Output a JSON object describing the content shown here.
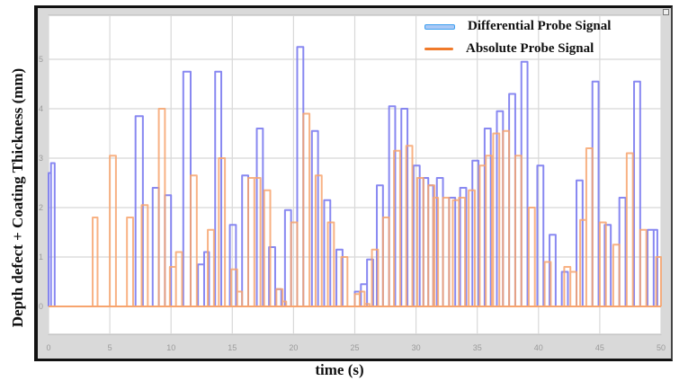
{
  "chart_data": {
    "type": "line",
    "subtype": "step",
    "title": "",
    "xlabel": "time (s)",
    "ylabel": "Depth defect + Coating Thickness (mm)",
    "xlim": [
      0,
      50
    ],
    "ylim": [
      -0.6,
      5.6
    ],
    "xticks": [
      0,
      5,
      10,
      15,
      20,
      25,
      30,
      35,
      40,
      45,
      50
    ],
    "yticks": [
      0,
      1,
      2,
      3,
      4,
      5
    ],
    "grid": true,
    "legend_position": "upper right",
    "series": [
      {
        "name": "Differential Probe Signal",
        "color": "#7b7bf0",
        "pulses": [
          [
            0.0,
            0.2,
            2.7
          ],
          [
            0.2,
            0.5,
            2.9
          ],
          [
            7.1,
            7.7,
            3.85
          ],
          [
            8.5,
            9.0,
            2.4
          ],
          [
            9.5,
            10.0,
            2.25
          ],
          [
            11.0,
            11.6,
            4.75
          ],
          [
            12.2,
            12.7,
            0.85
          ],
          [
            12.7,
            13.1,
            1.1
          ],
          [
            13.6,
            14.1,
            4.75
          ],
          [
            14.8,
            15.3,
            1.65
          ],
          [
            15.8,
            16.3,
            2.65
          ],
          [
            17.0,
            17.5,
            3.6
          ],
          [
            18.0,
            18.5,
            1.2
          ],
          [
            18.5,
            19.0,
            0.35
          ],
          [
            19.3,
            19.8,
            1.95
          ],
          [
            20.3,
            20.8,
            5.25
          ],
          [
            21.5,
            22.0,
            3.55
          ],
          [
            22.5,
            23.0,
            2.15
          ],
          [
            23.5,
            24.0,
            1.15
          ],
          [
            25.0,
            25.5,
            0.3
          ],
          [
            25.5,
            26.0,
            0.45
          ],
          [
            26.0,
            26.5,
            0.95
          ],
          [
            26.8,
            27.3,
            2.45
          ],
          [
            27.8,
            28.3,
            4.05
          ],
          [
            28.8,
            29.3,
            4.0
          ],
          [
            29.8,
            30.3,
            2.85
          ],
          [
            30.6,
            31.0,
            2.6
          ],
          [
            31.0,
            31.4,
            2.45
          ],
          [
            31.7,
            32.2,
            2.6
          ],
          [
            32.7,
            33.2,
            2.2
          ],
          [
            33.6,
            34.1,
            2.4
          ],
          [
            34.6,
            35.1,
            2.95
          ],
          [
            35.6,
            36.1,
            3.6
          ],
          [
            36.6,
            37.1,
            3.95
          ],
          [
            37.6,
            38.1,
            4.3
          ],
          [
            38.6,
            39.1,
            4.95
          ],
          [
            39.9,
            40.4,
            2.85
          ],
          [
            40.9,
            41.4,
            1.45
          ],
          [
            41.9,
            42.4,
            0.7
          ],
          [
            43.1,
            43.6,
            2.55
          ],
          [
            44.4,
            44.9,
            4.55
          ],
          [
            45.4,
            45.9,
            1.65
          ],
          [
            46.6,
            47.1,
            2.2
          ],
          [
            47.8,
            48.3,
            4.55
          ],
          [
            48.9,
            49.4,
            1.55
          ],
          [
            49.4,
            49.7,
            1.55
          ]
        ]
      },
      {
        "name": "Absolute Probe Signal",
        "color": "#f7a46e",
        "pulses": [
          [
            3.6,
            4.0,
            1.8
          ],
          [
            5.0,
            5.5,
            3.05
          ],
          [
            6.4,
            6.9,
            1.8
          ],
          [
            7.6,
            8.1,
            2.05
          ],
          [
            9.0,
            9.5,
            4.0
          ],
          [
            9.9,
            10.4,
            0.8
          ],
          [
            10.4,
            10.9,
            1.1
          ],
          [
            11.6,
            12.1,
            2.65
          ],
          [
            13.0,
            13.5,
            1.55
          ],
          [
            13.9,
            14.4,
            3.0
          ],
          [
            14.9,
            15.4,
            0.75
          ],
          [
            15.4,
            15.8,
            0.3
          ],
          [
            16.3,
            16.8,
            2.6
          ],
          [
            16.8,
            17.3,
            2.6
          ],
          [
            17.6,
            18.1,
            2.35
          ],
          [
            18.6,
            19.1,
            0.35
          ],
          [
            19.1,
            19.4,
            0.1
          ],
          [
            19.8,
            20.3,
            1.7
          ],
          [
            20.8,
            21.3,
            3.9
          ],
          [
            21.8,
            22.3,
            2.65
          ],
          [
            22.8,
            23.3,
            1.7
          ],
          [
            23.9,
            24.4,
            1.0
          ],
          [
            25.0,
            25.4,
            0.25
          ],
          [
            25.4,
            25.8,
            0.3
          ],
          [
            25.8,
            26.2,
            0.05
          ],
          [
            26.4,
            26.9,
            1.15
          ],
          [
            27.3,
            27.8,
            1.8
          ],
          [
            28.2,
            28.7,
            3.15
          ],
          [
            29.2,
            29.7,
            3.25
          ],
          [
            30.1,
            30.6,
            2.6
          ],
          [
            31.0,
            31.5,
            2.45
          ],
          [
            31.4,
            31.8,
            2.2
          ],
          [
            32.2,
            32.7,
            2.2
          ],
          [
            33.0,
            33.5,
            2.15
          ],
          [
            33.5,
            34.0,
            2.2
          ],
          [
            34.3,
            34.8,
            2.35
          ],
          [
            35.2,
            35.7,
            2.85
          ],
          [
            35.7,
            36.2,
            3.05
          ],
          [
            36.3,
            36.8,
            3.5
          ],
          [
            37.1,
            37.6,
            3.55
          ],
          [
            38.1,
            38.6,
            3.05
          ],
          [
            39.2,
            39.7,
            2.0
          ],
          [
            40.5,
            41.0,
            0.9
          ],
          [
            42.1,
            42.6,
            0.8
          ],
          [
            42.6,
            43.1,
            0.7
          ],
          [
            43.4,
            43.9,
            1.75
          ],
          [
            43.9,
            44.4,
            3.2
          ],
          [
            45.0,
            45.5,
            1.7
          ],
          [
            46.1,
            46.6,
            1.25
          ],
          [
            47.2,
            47.7,
            3.1
          ],
          [
            48.3,
            48.8,
            1.55
          ],
          [
            49.6,
            50.0,
            1.0
          ]
        ]
      }
    ]
  },
  "axes": {
    "xlabel": "time (s)",
    "ylabel": "Depth defect + Coating Thickness (mm)"
  },
  "legend": {
    "items": [
      {
        "label": "Differential Probe Signal",
        "color": "#a9c8f5"
      },
      {
        "label": "Absolute Probe Signal",
        "color": "#f07a2a"
      }
    ]
  }
}
